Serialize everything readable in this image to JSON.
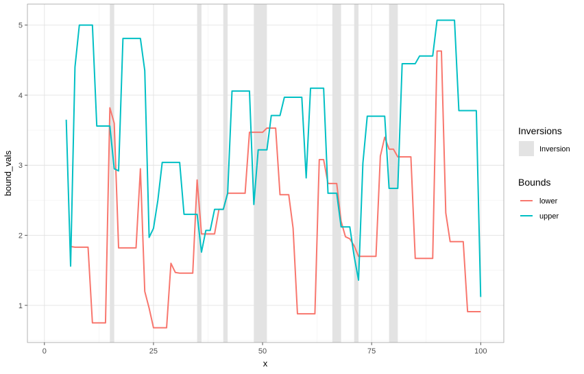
{
  "chart_data": {
    "type": "line",
    "xlabel": "x",
    "ylabel": "bound_vals",
    "xlim": [
      -3.9,
      105.3
    ],
    "ylim": [
      0.47,
      5.3
    ],
    "x_ticks": [
      0,
      25,
      50,
      75,
      100
    ],
    "y_ticks": [
      1,
      2,
      3,
      4,
      5
    ],
    "grid": true,
    "legend_position": "right",
    "inversion_legend": {
      "title": "Inversions",
      "label": "Inversion",
      "color": "#e3e3e3"
    },
    "bounds_legend": {
      "title": "Bounds"
    },
    "inversions": [
      [
        15,
        16
      ],
      [
        35,
        36
      ],
      [
        41,
        42
      ],
      [
        48,
        51
      ],
      [
        66,
        68
      ],
      [
        71,
        72
      ],
      [
        79,
        81
      ]
    ],
    "series": [
      {
        "name": "lower",
        "color": "#F8766D",
        "points": [
          [
            6,
            1.84
          ],
          [
            7,
            1.83
          ],
          [
            9,
            1.83
          ],
          [
            10,
            1.83
          ],
          [
            11,
            0.75
          ],
          [
            12,
            0.75
          ],
          [
            13,
            0.75
          ],
          [
            14,
            0.75
          ],
          [
            15,
            3.82
          ],
          [
            16,
            3.6
          ],
          [
            17,
            1.82
          ],
          [
            18,
            1.82
          ],
          [
            19,
            1.82
          ],
          [
            20,
            1.82
          ],
          [
            21,
            1.82
          ],
          [
            22,
            2.95
          ],
          [
            23,
            1.2
          ],
          [
            24,
            0.96
          ],
          [
            25,
            0.68
          ],
          [
            26,
            0.68
          ],
          [
            27,
            0.68
          ],
          [
            28,
            0.68
          ],
          [
            29,
            1.6
          ],
          [
            30,
            1.47
          ],
          [
            31,
            1.46
          ],
          [
            32,
            1.46
          ],
          [
            33,
            1.46
          ],
          [
            34,
            1.46
          ],
          [
            35,
            2.79
          ],
          [
            36,
            2.02
          ],
          [
            37,
            2.02
          ],
          [
            38,
            2.02
          ],
          [
            39,
            2.02
          ],
          [
            40,
            2.37
          ],
          [
            41,
            2.37
          ],
          [
            42,
            2.6
          ],
          [
            43,
            2.6
          ],
          [
            44,
            2.6
          ],
          [
            45,
            2.6
          ],
          [
            46,
            2.6
          ],
          [
            47,
            3.47
          ],
          [
            48,
            3.47
          ],
          [
            49,
            3.47
          ],
          [
            50,
            3.47
          ],
          [
            51,
            3.53
          ],
          [
            52,
            3.53
          ],
          [
            53,
            3.53
          ],
          [
            54,
            2.58
          ],
          [
            55,
            2.58
          ],
          [
            56,
            2.58
          ],
          [
            57,
            2.1
          ],
          [
            58,
            0.88
          ],
          [
            59,
            0.88
          ],
          [
            60,
            0.88
          ],
          [
            61,
            0.88
          ],
          [
            62,
            0.88
          ],
          [
            63,
            3.08
          ],
          [
            64,
            3.08
          ],
          [
            65,
            2.74
          ],
          [
            66,
            2.74
          ],
          [
            67,
            2.74
          ],
          [
            68,
            2.2
          ],
          [
            69,
            1.98
          ],
          [
            70,
            1.95
          ],
          [
            71,
            1.85
          ],
          [
            72,
            1.7
          ],
          [
            73,
            1.7
          ],
          [
            74,
            1.7
          ],
          [
            75,
            1.7
          ],
          [
            76,
            1.7
          ],
          [
            77,
            3.13
          ],
          [
            78,
            3.4
          ],
          [
            79,
            3.23
          ],
          [
            80,
            3.23
          ],
          [
            81,
            3.12
          ],
          [
            82,
            3.12
          ],
          [
            83,
            3.12
          ],
          [
            84,
            3.12
          ],
          [
            85,
            1.67
          ],
          [
            86,
            1.67
          ],
          [
            87,
            1.67
          ],
          [
            88,
            1.67
          ],
          [
            89,
            1.67
          ],
          [
            90,
            4.63
          ],
          [
            91,
            4.63
          ],
          [
            92,
            2.32
          ],
          [
            93,
            1.91
          ],
          [
            94,
            1.91
          ],
          [
            95,
            1.91
          ],
          [
            96,
            1.91
          ],
          [
            97,
            0.91
          ],
          [
            98,
            0.91
          ],
          [
            99,
            0.91
          ],
          [
            100,
            0.91
          ]
        ]
      },
      {
        "name": "upper",
        "color": "#00BFC4",
        "points": [
          [
            5,
            3.65
          ],
          [
            6,
            1.56
          ],
          [
            7,
            4.4
          ],
          [
            8,
            5.0
          ],
          [
            9,
            5.0
          ],
          [
            10,
            5.0
          ],
          [
            11,
            5.0
          ],
          [
            12,
            3.56
          ],
          [
            13,
            3.56
          ],
          [
            14,
            3.56
          ],
          [
            15,
            3.56
          ],
          [
            16,
            2.95
          ],
          [
            17,
            2.92
          ],
          [
            18,
            4.81
          ],
          [
            19,
            4.81
          ],
          [
            20,
            4.81
          ],
          [
            21,
            4.81
          ],
          [
            22,
            4.81
          ],
          [
            23,
            4.35
          ],
          [
            24,
            1.97
          ],
          [
            25,
            2.1
          ],
          [
            26,
            2.5
          ],
          [
            27,
            3.04
          ],
          [
            28,
            3.04
          ],
          [
            29,
            3.04
          ],
          [
            30,
            3.04
          ],
          [
            31,
            3.04
          ],
          [
            32,
            2.3
          ],
          [
            33,
            2.3
          ],
          [
            34,
            2.3
          ],
          [
            35,
            2.3
          ],
          [
            36,
            1.76
          ],
          [
            37,
            2.07
          ],
          [
            38,
            2.07
          ],
          [
            39,
            2.37
          ],
          [
            40,
            2.37
          ],
          [
            41,
            2.37
          ],
          [
            42,
            2.6
          ],
          [
            43,
            4.06
          ],
          [
            44,
            4.06
          ],
          [
            45,
            4.06
          ],
          [
            46,
            4.06
          ],
          [
            47,
            4.06
          ],
          [
            48,
            2.44
          ],
          [
            49,
            3.22
          ],
          [
            50,
            3.22
          ],
          [
            51,
            3.22
          ],
          [
            52,
            3.71
          ],
          [
            53,
            3.71
          ],
          [
            54,
            3.71
          ],
          [
            55,
            3.97
          ],
          [
            56,
            3.97
          ],
          [
            57,
            3.97
          ],
          [
            58,
            3.97
          ],
          [
            59,
            3.97
          ],
          [
            60,
            2.82
          ],
          [
            61,
            4.1
          ],
          [
            62,
            4.1
          ],
          [
            63,
            4.1
          ],
          [
            64,
            4.1
          ],
          [
            65,
            2.6
          ],
          [
            66,
            2.6
          ],
          [
            67,
            2.6
          ],
          [
            68,
            2.12
          ],
          [
            69,
            2.12
          ],
          [
            70,
            2.12
          ],
          [
            71,
            1.7
          ],
          [
            72,
            1.36
          ],
          [
            73,
            3.03
          ],
          [
            74,
            3.7
          ],
          [
            75,
            3.7
          ],
          [
            76,
            3.7
          ],
          [
            77,
            3.7
          ],
          [
            78,
            3.7
          ],
          [
            79,
            2.67
          ],
          [
            80,
            2.67
          ],
          [
            81,
            2.67
          ],
          [
            82,
            4.45
          ],
          [
            83,
            4.45
          ],
          [
            84,
            4.45
          ],
          [
            85,
            4.45
          ],
          [
            86,
            4.56
          ],
          [
            87,
            4.56
          ],
          [
            88,
            4.56
          ],
          [
            89,
            4.56
          ],
          [
            90,
            5.07
          ],
          [
            91,
            5.07
          ],
          [
            92,
            5.07
          ],
          [
            93,
            5.07
          ],
          [
            94,
            5.07
          ],
          [
            95,
            3.78
          ],
          [
            96,
            3.78
          ],
          [
            97,
            3.78
          ],
          [
            98,
            3.78
          ],
          [
            99,
            3.78
          ],
          [
            100,
            1.12
          ]
        ]
      }
    ]
  }
}
